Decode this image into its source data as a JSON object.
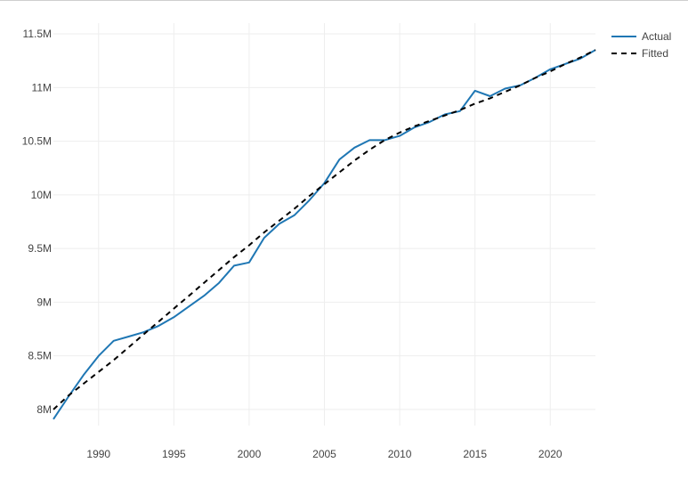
{
  "chart_data": {
    "type": "line",
    "title": "",
    "xlabel": "",
    "ylabel": "",
    "xlim": [
      1987,
      2023
    ],
    "ylim": [
      7850000,
      11600000
    ],
    "x_ticks": [
      1990,
      1995,
      2000,
      2005,
      2010,
      2015,
      2020
    ],
    "x_tick_labels": [
      "1990",
      "1995",
      "2000",
      "2005",
      "2010",
      "2015",
      "2020"
    ],
    "y_ticks": [
      8000000,
      8500000,
      9000000,
      9500000,
      10000000,
      10500000,
      11000000,
      11500000
    ],
    "y_tick_labels": [
      "8M",
      "8.5M",
      "9M",
      "9.5M",
      "10M",
      "10.5M",
      "11M",
      "11.5M"
    ],
    "grid": true,
    "legend_position": "top-right",
    "colors": {
      "actual": "#1f77b4",
      "fitted": "#000000",
      "grid": "#eeeeee"
    },
    "x": [
      1987,
      1988,
      1989,
      1990,
      1991,
      1992,
      1993,
      1994,
      1995,
      1996,
      1997,
      1998,
      1999,
      2000,
      2001,
      2002,
      2003,
      2004,
      2005,
      2006,
      2007,
      2008,
      2009,
      2010,
      2011,
      2012,
      2013,
      2014,
      2015,
      2016,
      2017,
      2018,
      2019,
      2020,
      2021,
      2022,
      2023
    ],
    "series": [
      {
        "name": "Actual",
        "style": "solid",
        "values": [
          7910000,
          8120000,
          8320000,
          8500000,
          8640000,
          8680000,
          8720000,
          8780000,
          8860000,
          8960000,
          9060000,
          9180000,
          9340000,
          9370000,
          9600000,
          9730000,
          9810000,
          9950000,
          10110000,
          10330000,
          10440000,
          10510000,
          10510000,
          10550000,
          10630000,
          10680000,
          10750000,
          10780000,
          10970000,
          10920000,
          10990000,
          11020000,
          11090000,
          11170000,
          11220000,
          11270000,
          11350000
        ]
      },
      {
        "name": "Fitted",
        "style": "dashed",
        "values": [
          8000000,
          8130000,
          8240000,
          8350000,
          8460000,
          8580000,
          8700000,
          8820000,
          8940000,
          9060000,
          9180000,
          9300000,
          9420000,
          9530000,
          9650000,
          9760000,
          9870000,
          9990000,
          10100000,
          10210000,
          10320000,
          10420000,
          10510000,
          10580000,
          10640000,
          10690000,
          10740000,
          10790000,
          10850000,
          10900000,
          10960000,
          11020000,
          11090000,
          11150000,
          11220000,
          11280000,
          11350000
        ]
      }
    ]
  }
}
